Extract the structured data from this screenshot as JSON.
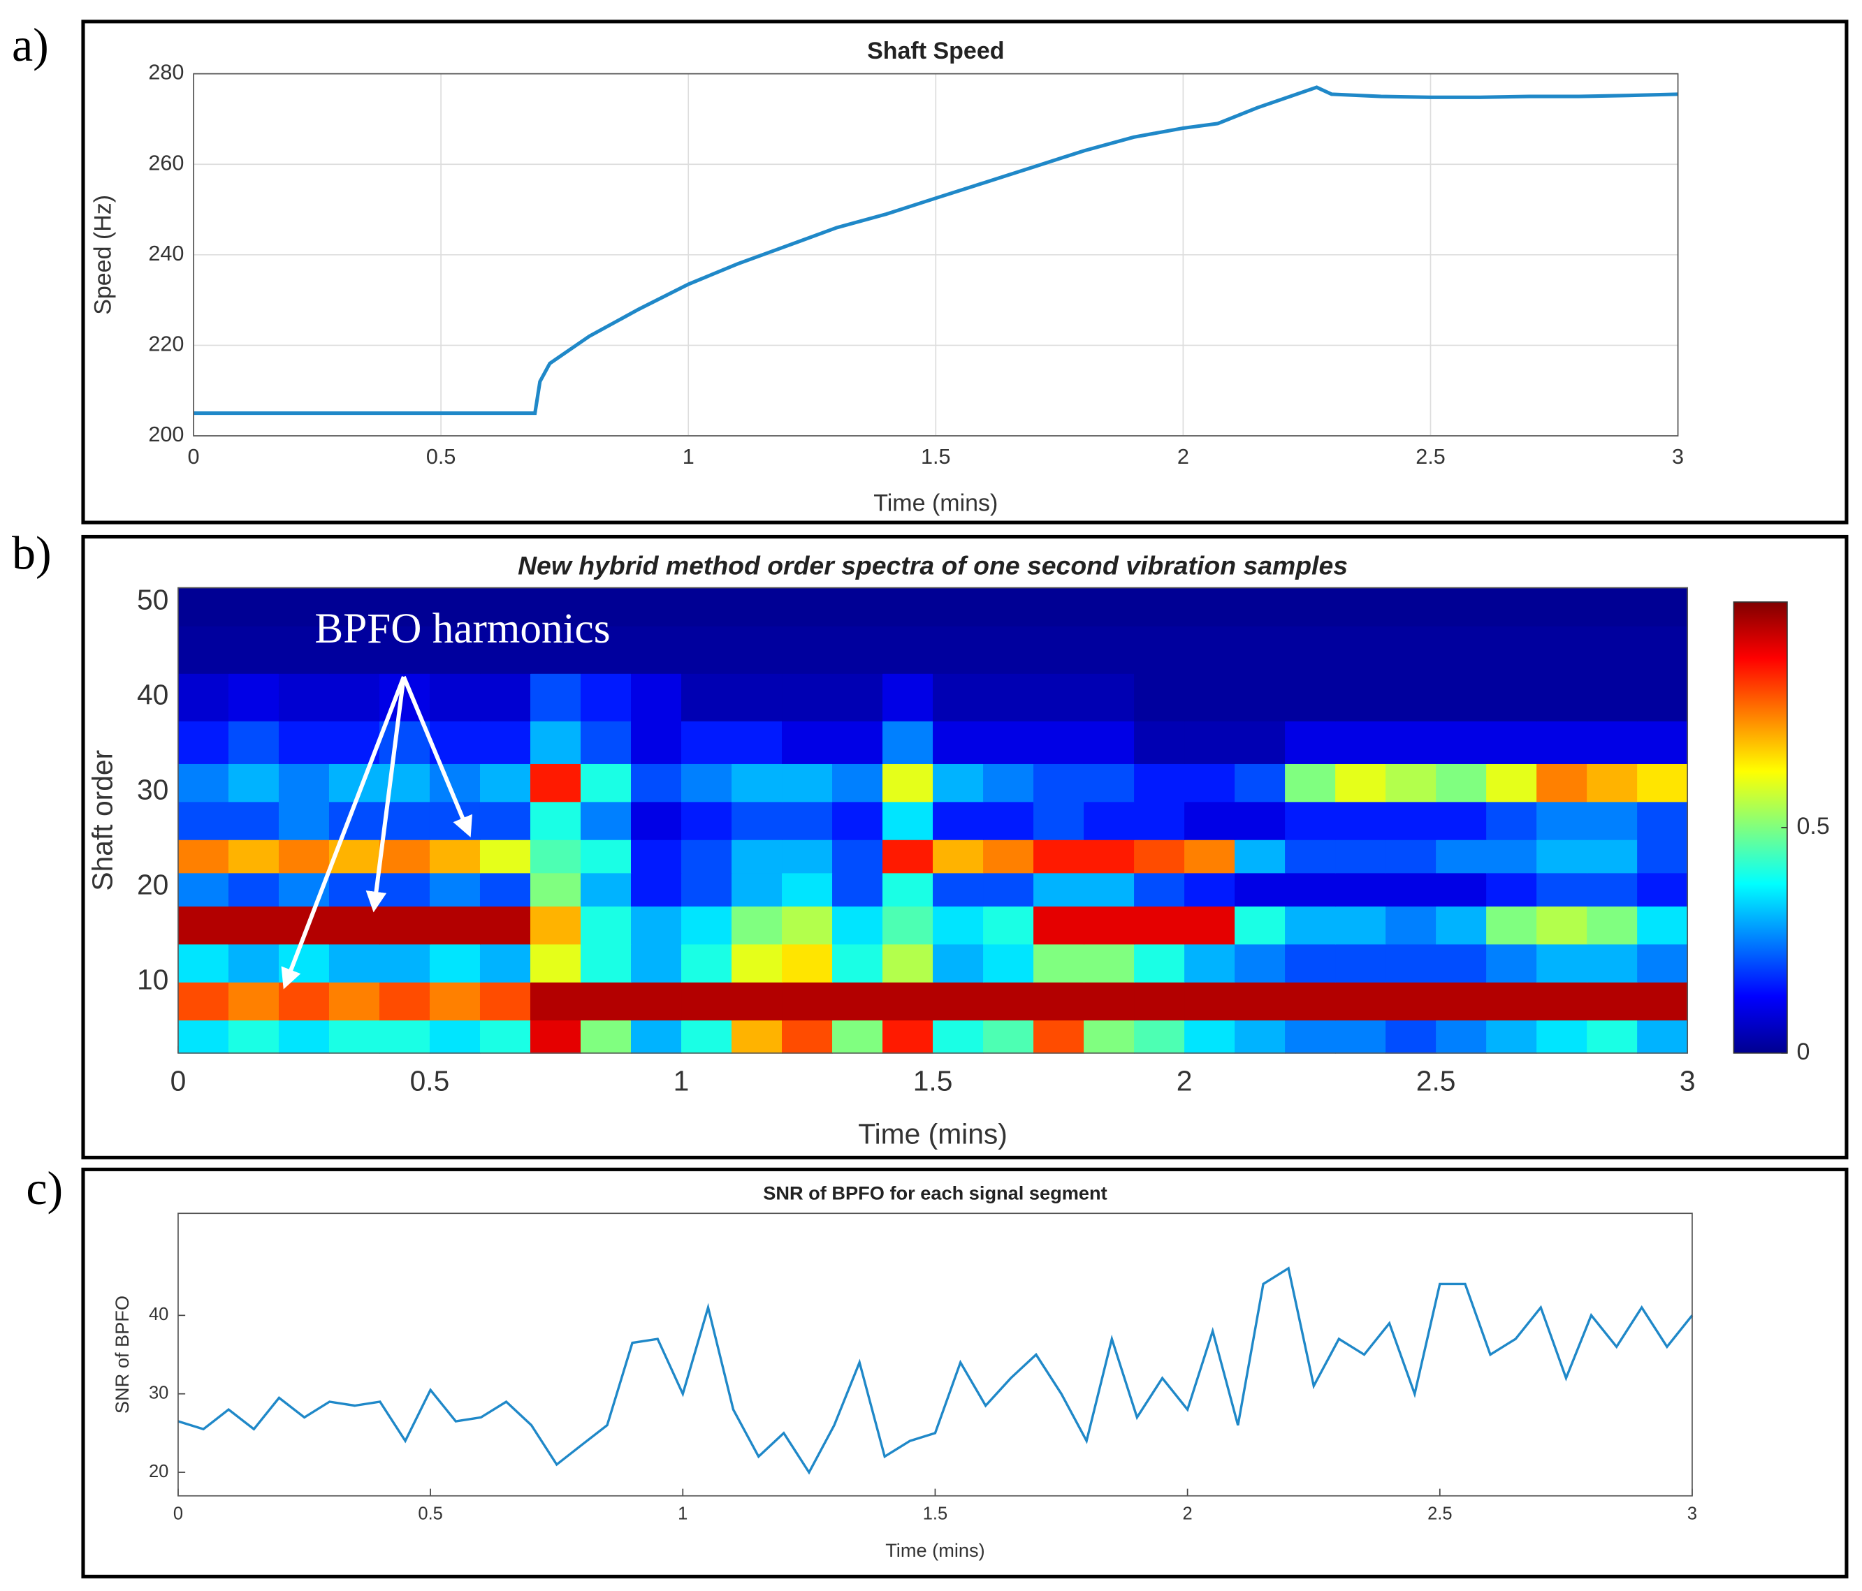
{
  "chart_data": [
    {
      "type": "line",
      "panel_label": "a)",
      "title": "Shaft Speed",
      "xlabel": "Time (mins)",
      "ylabel": "Speed (Hz)",
      "color": "#1f88c8",
      "grid": true,
      "x": [
        0,
        0.69,
        0.7,
        0.72,
        0.8,
        0.9,
        1,
        1.1,
        1.2,
        1.3,
        1.4,
        1.5,
        1.6,
        1.7,
        1.8,
        1.9,
        2,
        2.07,
        2.15,
        2.27,
        2.3,
        2.4,
        2.5,
        2.6,
        2.7,
        2.8,
        2.9,
        3
      ],
      "values": [
        205,
        205,
        212,
        216,
        222,
        228,
        233.5,
        238,
        242,
        246,
        249,
        252.5,
        256,
        259.5,
        263,
        266,
        268,
        269,
        272.5,
        277,
        275.5,
        275,
        274.8,
        274.8,
        275,
        275,
        275.2,
        275.5
      ],
      "xlim": [
        0,
        3
      ],
      "xticks": [
        0,
        0.5,
        1,
        1.5,
        2,
        2.5,
        3
      ],
      "ylim": [
        200,
        280
      ],
      "yticks": [
        200,
        220,
        240,
        260,
        280
      ]
    },
    {
      "type": "heatmap",
      "panel_label": "b)",
      "title": "New hybrid method order spectra of one second vibration samples",
      "xlabel": "Time (mins)",
      "ylabel": "Shaft order",
      "annotation": "BPFO harmonics",
      "x": [
        0.05,
        0.15,
        0.25,
        0.35,
        0.45,
        0.55,
        0.65,
        0.75,
        0.85,
        0.95,
        1.05,
        1.15,
        1.25,
        1.35,
        1.45,
        1.55,
        1.65,
        1.75,
        1.85,
        1.95,
        2.05,
        2.15,
        2.25,
        2.35,
        2.45,
        2.55,
        2.65,
        2.75,
        2.85,
        2.95
      ],
      "y": [
        4,
        8,
        12,
        16,
        20,
        23,
        27,
        31,
        35,
        40,
        45,
        50
      ],
      "z": [
        [
          0.35,
          0.4,
          0.35,
          0.4,
          0.4,
          0.35,
          0.4,
          0.9,
          0.5,
          0.3,
          0.4,
          0.7,
          0.8,
          0.5,
          0.85,
          0.4,
          0.45,
          0.8,
          0.5,
          0.45,
          0.35,
          0.3,
          0.25,
          0.25,
          0.2,
          0.25,
          0.3,
          0.35,
          0.4,
          0.3
        ],
        [
          0.8,
          0.75,
          0.8,
          0.75,
          0.8,
          0.75,
          0.8,
          0.95,
          0.95,
          0.95,
          0.95,
          0.95,
          0.95,
          0.95,
          0.95,
          0.95,
          0.95,
          0.95,
          0.95,
          0.95,
          0.95,
          0.95,
          0.95,
          0.95,
          0.95,
          0.95,
          0.95,
          0.95,
          0.95,
          0.95
        ],
        [
          0.35,
          0.3,
          0.35,
          0.3,
          0.3,
          0.35,
          0.3,
          0.6,
          0.4,
          0.3,
          0.4,
          0.6,
          0.65,
          0.4,
          0.55,
          0.3,
          0.35,
          0.5,
          0.5,
          0.4,
          0.3,
          0.25,
          0.2,
          0.2,
          0.2,
          0.2,
          0.25,
          0.3,
          0.3,
          0.25
        ],
        [
          0.95,
          0.95,
          0.95,
          0.95,
          0.95,
          0.95,
          0.95,
          0.7,
          0.4,
          0.3,
          0.35,
          0.5,
          0.55,
          0.35,
          0.45,
          0.35,
          0.4,
          0.9,
          0.9,
          0.9,
          0.9,
          0.4,
          0.3,
          0.3,
          0.25,
          0.3,
          0.5,
          0.55,
          0.5,
          0.35
        ],
        [
          0.25,
          0.2,
          0.25,
          0.2,
          0.2,
          0.25,
          0.2,
          0.5,
          0.3,
          0.15,
          0.2,
          0.3,
          0.35,
          0.2,
          0.4,
          0.2,
          0.2,
          0.3,
          0.3,
          0.2,
          0.15,
          0.1,
          0.1,
          0.1,
          0.1,
          0.1,
          0.15,
          0.2,
          0.2,
          0.15
        ],
        [
          0.75,
          0.7,
          0.75,
          0.7,
          0.75,
          0.7,
          0.6,
          0.45,
          0.4,
          0.15,
          0.2,
          0.3,
          0.3,
          0.2,
          0.85,
          0.7,
          0.75,
          0.85,
          0.85,
          0.8,
          0.75,
          0.3,
          0.2,
          0.2,
          0.2,
          0.25,
          0.25,
          0.3,
          0.3,
          0.2
        ],
        [
          0.2,
          0.2,
          0.25,
          0.2,
          0.2,
          0.2,
          0.2,
          0.4,
          0.25,
          0.1,
          0.15,
          0.2,
          0.2,
          0.15,
          0.35,
          0.15,
          0.15,
          0.2,
          0.15,
          0.15,
          0.1,
          0.1,
          0.15,
          0.15,
          0.15,
          0.15,
          0.2,
          0.25,
          0.25,
          0.2
        ],
        [
          0.25,
          0.3,
          0.25,
          0.3,
          0.3,
          0.25,
          0.3,
          0.85,
          0.4,
          0.2,
          0.25,
          0.3,
          0.3,
          0.25,
          0.6,
          0.3,
          0.25,
          0.2,
          0.2,
          0.15,
          0.15,
          0.2,
          0.5,
          0.6,
          0.55,
          0.5,
          0.6,
          0.75,
          0.7,
          0.65
        ],
        [
          0.15,
          0.2,
          0.15,
          0.15,
          0.2,
          0.15,
          0.15,
          0.3,
          0.2,
          0.1,
          0.15,
          0.15,
          0.1,
          0.1,
          0.25,
          0.1,
          0.1,
          0.1,
          0.1,
          0.05,
          0.05,
          0.05,
          0.1,
          0.1,
          0.1,
          0.1,
          0.1,
          0.1,
          0.1,
          0.1
        ],
        [
          0.08,
          0.1,
          0.08,
          0.08,
          0.1,
          0.08,
          0.08,
          0.2,
          0.15,
          0.1,
          0.05,
          0.05,
          0.05,
          0.05,
          0.1,
          0.05,
          0.05,
          0.05,
          0.05,
          0.03,
          0.03,
          0.03,
          0.03,
          0.03,
          0.03,
          0.03,
          0.03,
          0.03,
          0.03,
          0.03
        ],
        [
          0.03,
          0.03,
          0.03,
          0.03,
          0.03,
          0.03,
          0.03,
          0.03,
          0.03,
          0.03,
          0.03,
          0.03,
          0.03,
          0.03,
          0.03,
          0.03,
          0.03,
          0.03,
          0.03,
          0.03,
          0.03,
          0.03,
          0.03,
          0.03,
          0.03,
          0.03,
          0.03,
          0.03,
          0.03,
          0.03
        ],
        [
          0.02,
          0.02,
          0.02,
          0.02,
          0.02,
          0.02,
          0.02,
          0.02,
          0.02,
          0.02,
          0.02,
          0.02,
          0.02,
          0.02,
          0.02,
          0.02,
          0.02,
          0.02,
          0.02,
          0.02,
          0.02,
          0.02,
          0.02,
          0.02,
          0.02,
          0.02,
          0.02,
          0.02,
          0.02,
          0.02
        ]
      ],
      "xlim": [
        0,
        3
      ],
      "xticks": [
        0,
        0.5,
        1,
        1.5,
        2,
        2.5,
        3
      ],
      "ylim": [
        2.5,
        51.5
      ],
      "yticks": [
        10,
        20,
        30,
        40,
        50
      ],
      "clim": [
        0,
        1
      ],
      "cticks": [
        0,
        0.5
      ]
    },
    {
      "type": "line",
      "panel_label": "c)",
      "title": "SNR of BPFO for each signal segment",
      "xlabel": "Time (mins)",
      "ylabel": "SNR of BPFO",
      "color": "#1f88c8",
      "grid": false,
      "x": [
        0,
        0.05,
        0.1,
        0.15,
        0.2,
        0.25,
        0.3,
        0.35,
        0.4,
        0.45,
        0.5,
        0.55,
        0.6,
        0.65,
        0.7,
        0.75,
        0.8,
        0.85,
        0.9,
        0.95,
        1,
        1.05,
        1.1,
        1.15,
        1.2,
        1.25,
        1.3,
        1.35,
        1.4,
        1.45,
        1.5,
        1.55,
        1.6,
        1.65,
        1.7,
        1.75,
        1.8,
        1.85,
        1.9,
        1.95,
        2,
        2.05,
        2.1,
        2.15,
        2.2,
        2.25,
        2.3,
        2.35,
        2.4,
        2.45,
        2.5,
        2.55,
        2.6,
        2.65,
        2.7,
        2.75,
        2.8,
        2.85,
        2.9,
        2.95,
        3
      ],
      "values": [
        26.5,
        25.5,
        28,
        25.5,
        29.5,
        27,
        29,
        28.5,
        29,
        24,
        30.5,
        26.5,
        27,
        29,
        26,
        21,
        23.5,
        26,
        36.5,
        37,
        30,
        41,
        28,
        22,
        25,
        20,
        26,
        34,
        22,
        24,
        25,
        34,
        28.5,
        32,
        35,
        30,
        24,
        37,
        27,
        32,
        28,
        38,
        26,
        44,
        46,
        31,
        37,
        35,
        39,
        30,
        44,
        44,
        35,
        37,
        41,
        32,
        40,
        36,
        41,
        36,
        40
      ],
      "xlim": [
        0,
        3
      ],
      "xticks": [
        0,
        0.5,
        1,
        1.5,
        2,
        2.5,
        3
      ],
      "ylim": [
        17,
        53
      ],
      "yticks": [
        20,
        30,
        40
      ]
    }
  ]
}
